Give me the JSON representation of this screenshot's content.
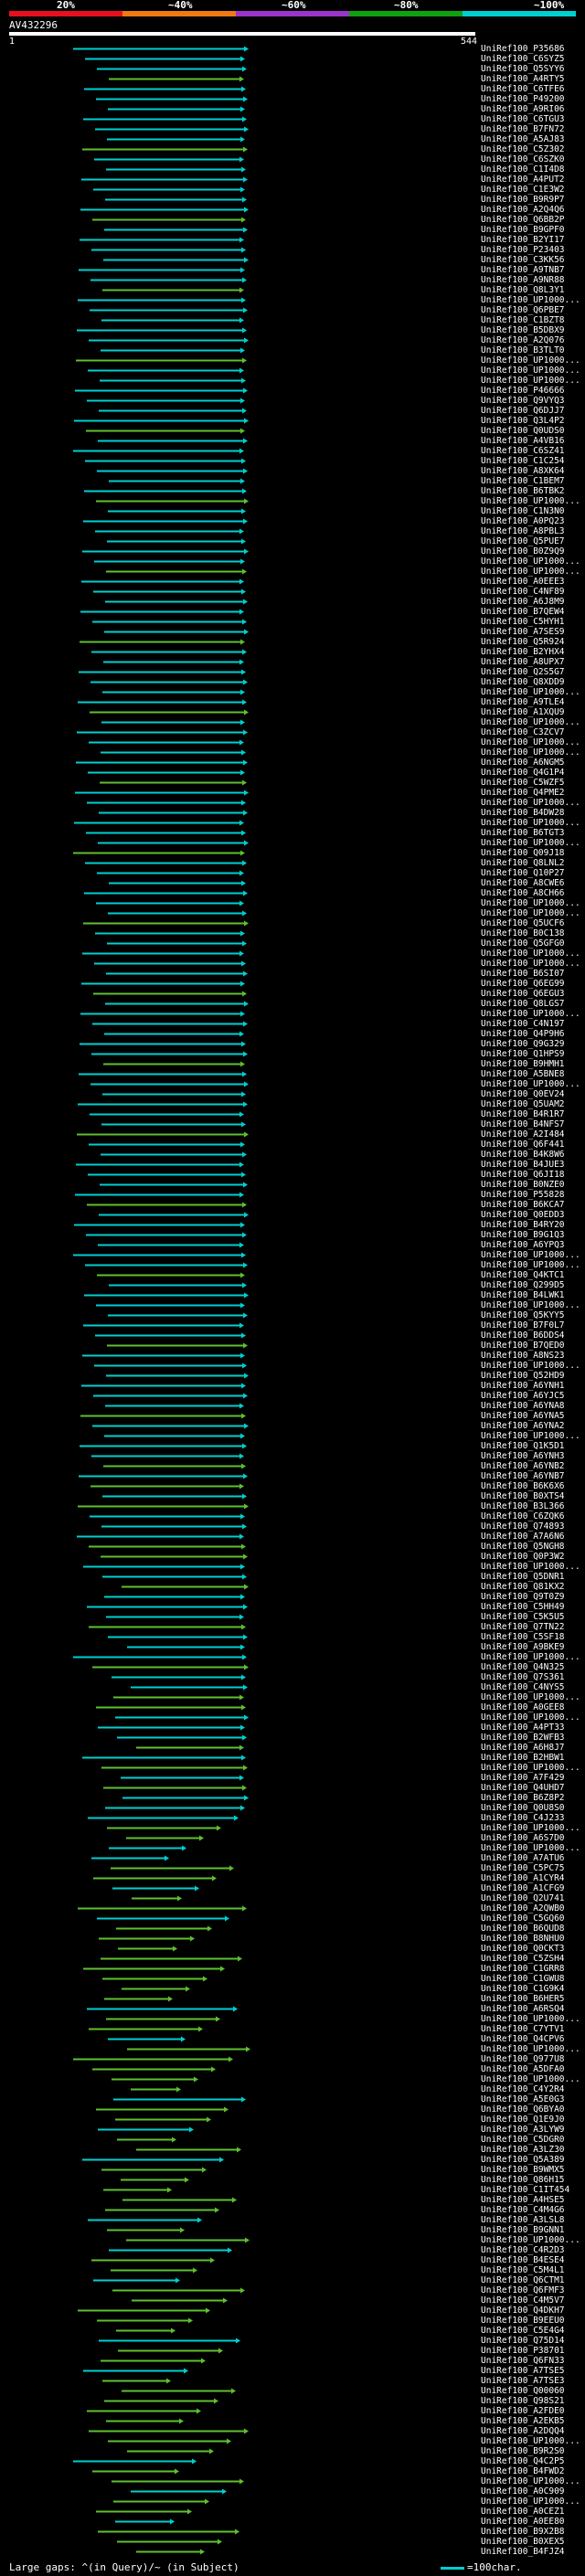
{
  "scale": {
    "labels": [
      "20%",
      "~40%",
      "~60%",
      "~80%",
      "~100%"
    ],
    "colors": [
      "#e8101c",
      "#f07a12",
      "#9b34c9",
      "#10a010",
      "#00cfd1"
    ]
  },
  "query": {
    "title": "AV432296",
    "start": "1",
    "end": "544"
  },
  "colors": {
    "cyan": "#00cfd1",
    "green": "#5fbf2f",
    "gap": "#aaaaaa",
    "query_bar": "#ffffff"
  },
  "hits": [
    "UniRef100_P35686",
    "UniRef100_C6SYZ5",
    "UniRef100_Q5SYY6",
    "UniRef100_A4RTY5",
    "UniRef100_C6TFE6",
    "UniRef100_P49200",
    "UniRef100_A9RI06",
    "UniRef100_C6TGU3",
    "UniRef100_B7FN72",
    "UniRef100_A5AJ83",
    "UniRef100_C5Z302",
    "UniRef100_C6SZK0",
    "UniRef100_C1I4D8",
    "UniRef100_A4PUT2",
    "UniRef100_C1E3W2",
    "UniRef100_B9R9P7",
    "UniRef100_A2Q4Q6",
    "UniRef100_Q6BB2P",
    "UniRef100_B9GPF0",
    "UniRef100_B2YI17",
    "UniRef100_P23403",
    "UniRef100_C3KK56",
    "UniRef100_A9TNB7",
    "UniRef100_A9NR88",
    "UniRef100_Q8L3Y1",
    "UniRef100_UP1000...",
    "UniRef100_Q6PBE7",
    "UniRef100_C1BZT8",
    "UniRef100_B5DBX9",
    "UniRef100_A2Q076",
    "UniRef100_B3TLT0",
    "UniRef100_UP1000...",
    "UniRef100_UP1000...",
    "UniRef100_UP1000...",
    "UniRef100_P46666",
    "UniRef100_Q9VYQ3",
    "UniRef100_Q6DJJ7",
    "UniRef100_Q3L4P2",
    "UniRef100_Q0UDS0",
    "UniRef100_A4VB16",
    "UniRef100_C6SZ41",
    "UniRef100_C1C254",
    "UniRef100_A8XK64",
    "UniRef100_C1BEM7",
    "UniRef100_B6TBK2",
    "UniRef100_UP1000...",
    "UniRef100_C1N3N0",
    "UniRef100_A0PQ23",
    "UniRef100_A8PBL3",
    "UniRef100_Q5PUE7",
    "UniRef100_B0Z9Q9",
    "UniRef100_UP1000...",
    "UniRef100_UP1000...",
    "UniRef100_A0EEE3",
    "UniRef100_C4NF89",
    "UniRef100_A6J8M9",
    "UniRef100_B7QEW4",
    "UniRef100_C5HYH1",
    "UniRef100_A7SES9",
    "UniRef100_Q5R924",
    "UniRef100_B2YHX4",
    "UniRef100_A8UPX7",
    "UniRef100_Q2S5G7",
    "UniRef100_Q8XDD9",
    "UniRef100_UP1000...",
    "UniRef100_A9TLE4",
    "UniRef100_A1XQU9",
    "UniRef100_UP1000...",
    "UniRef100_C3ZCV7",
    "UniRef100_UP1000...",
    "UniRef100_UP1000...",
    "UniRef100_A6NGM5",
    "UniRef100_Q4G1P4",
    "UniRef100_C5WZF5",
    "UniRef100_Q4PME2",
    "UniRef100_UP1000...",
    "UniRef100_B4DW28",
    "UniRef100_UP1000...",
    "UniRef100_B6TGT3",
    "UniRef100_UP1000...",
    "UniRef100_Q09J18",
    "UniRef100_Q8LNL2",
    "UniRef100_Q10P27",
    "UniRef100_A8CWE6",
    "UniRef100_A8CH66",
    "UniRef100_UP1000...",
    "UniRef100_UP1000...",
    "UniRef100_Q5UCF6",
    "UniRef100_B0C138",
    "UniRef100_Q5GFG0",
    "UniRef100_UP1000...",
    "UniRef100_UP1000...",
    "UniRef100_B6SI07",
    "UniRef100_Q6EG99",
    "UniRef100_Q6EGU3",
    "UniRef100_Q8LGS7",
    "UniRef100_UP1000...",
    "UniRef100_C4N197",
    "UniRef100_Q4P9H6",
    "UniRef100_Q9G329",
    "UniRef100_Q1HPS9",
    "UniRef100_B9HMH1",
    "UniRef100_A5BNE8",
    "UniRef100_UP1000...",
    "UniRef100_Q0EV24",
    "UniRef100_Q5UAM2",
    "UniRef100_B4R1R7",
    "UniRef100_B4NFS7",
    "UniRef100_A2I484",
    "UniRef100_Q6F441",
    "UniRef100_B4K8W6",
    "UniRef100_B4JUE3",
    "UniRef100_Q6JI18",
    "UniRef100_B0NZE0",
    "UniRef100_P55828",
    "UniRef100_B6KCA7",
    "UniRef100_Q0EDD3",
    "UniRef100_B4RY20",
    "UniRef100_B9G1Q3",
    "UniRef100_A6YPQ3",
    "UniRef100_UP1000...",
    "UniRef100_UP1000...",
    "UniRef100_Q4KTC1",
    "UniRef100_Q299D5",
    "UniRef100_B4LWK1",
    "UniRef100_UP1000...",
    "UniRef100_Q5KYY5",
    "UniRef100_B7F0L7",
    "UniRef100_B6DDS4",
    "UniRef100_B7QED0",
    "UniRef100_A8NS23",
    "UniRef100_UP1000...",
    "UniRef100_Q52HD9",
    "UniRef100_A6YNH1",
    "UniRef100_A6YJC5",
    "UniRef100_A6YNA8",
    "UniRef100_A6YNA5",
    "UniRef100_A6YNA2",
    "UniRef100_UP1000...",
    "UniRef100_Q1K5D1",
    "UniRef100_A6YNH3",
    "UniRef100_A6YNB2",
    "UniRef100_A6YNB7",
    "UniRef100_B6K6X6",
    "UniRef100_B0XTS4",
    "UniRef100_B3L366",
    "UniRef100_C6ZQK6",
    "UniRef100_Q74893",
    "UniRef100_A7A6N6",
    "UniRef100_Q5NGH8",
    "UniRef100_Q0P3W2",
    "UniRef100_UP1000...",
    "UniRef100_Q5DNR1",
    "UniRef100_Q81KX2",
    "UniRef100_Q9T0Z9",
    "UniRef100_C5HH49",
    "UniRef100_C5K5U5",
    "UniRef100_Q7TN22",
    "UniRef100_C5SF18",
    "UniRef100_A9BKE9",
    "UniRef100_UP1000...",
    "UniRef100_Q4N325",
    "UniRef100_Q7S361",
    "UniRef100_C4NYS5",
    "UniRef100_UP1000...",
    "UniRef100_A0GEE8",
    "UniRef100_UP1000...",
    "UniRef100_A4PT33",
    "UniRef100_B2WFB3",
    "UniRef100_A6H8J7",
    "UniRef100_B2HBW1",
    "UniRef100_UP1000...",
    "UniRef100_A7F429",
    "UniRef100_Q4UHD7",
    "UniRef100_B6Z8P2",
    "UniRef100_Q0U8S0",
    "UniRef100_C4J233",
    "UniRef100_UP1000...",
    "UniRef100_A6S7D0",
    "UniRef100_UP1000...",
    "UniRef100_A7ATU6",
    "UniRef100_C5PC75",
    "UniRef100_A1CYR4",
    "UniRef100_A1CFG9",
    "UniRef100_Q2U741",
    "UniRef100_A2QWB0",
    "UniRef100_C5GQ60",
    "UniRef100_B6QUD8",
    "UniRef100_B8NHU0",
    "UniRef100_Q0CKT3",
    "UniRef100_C5ZSH4",
    "UniRef100_C1GRR8",
    "UniRef100_C1GWU8",
    "UniRef100_C1G9K4",
    "UniRef100_B6HER5",
    "UniRef100_A6RSQ4",
    "UniRef100_UP1000...",
    "UniRef100_C7YTV1",
    "UniRef100_Q4CPV6",
    "UniRef100_UP1000...",
    "UniRef100_Q977U8",
    "UniRef100_A5DFA0",
    "UniRef100_UP1000...",
    "UniRef100_C4Y2R4",
    "UniRef100_A5E0G3",
    "UniRef100_Q6BYA0",
    "UniRef100_Q1E9J0",
    "UniRef100_A3LYW9",
    "UniRef100_C5DGR0",
    "UniRef100_A3LZ30",
    "UniRef100_Q5A389",
    "UniRef100_B9WMX5",
    "UniRef100_Q86H15",
    "UniRef100_C1IT454",
    "UniRef100_A4HSE5",
    "UniRef100_C4M4G6",
    "UniRef100_A3LSL8",
    "UniRef100_B9GNN1",
    "UniRef100_UP1000...",
    "UniRef100_C4R2D3",
    "UniRef100_B4ESE4",
    "UniRef100_C5M4L1",
    "UniRef100_Q6CTM1",
    "UniRef100_Q6FMF3",
    "UniRef100_C4M5V7",
    "UniRef100_Q4DKH7",
    "UniRef100_B9EEU0",
    "UniRef100_C5E4G4",
    "UniRef100_Q75D14",
    "UniRef100_P38701",
    "UniRef100_Q6FN33",
    "UniRef100_A7TSE5",
    "UniRef100_A7TSE3",
    "UniRef100_Q00060",
    "UniRef100_Q98S21",
    "UniRef100_A2FDE0",
    "UniRef100_A2EKB5",
    "UniRef100_A2DQQ4",
    "UniRef100_UP1000...",
    "UniRef100_B9R2S0",
    "UniRef100_Q4C2P5",
    "UniRef100_B4FWD2",
    "UniRef100_UP1000...",
    "UniRef100_A0C909",
    "UniRef100_UP1000...",
    "UniRef100_A0CEZ1",
    "UniRef100_A0EE80",
    "UniRef100_B9X2B8",
    "UniRef100_B0XEX5",
    "UniRef100_B4FJZ4"
  ],
  "footer": {
    "legend": "Large gaps: ^(in Query)/~ (in Subject)",
    "ref": "=100char."
  }
}
